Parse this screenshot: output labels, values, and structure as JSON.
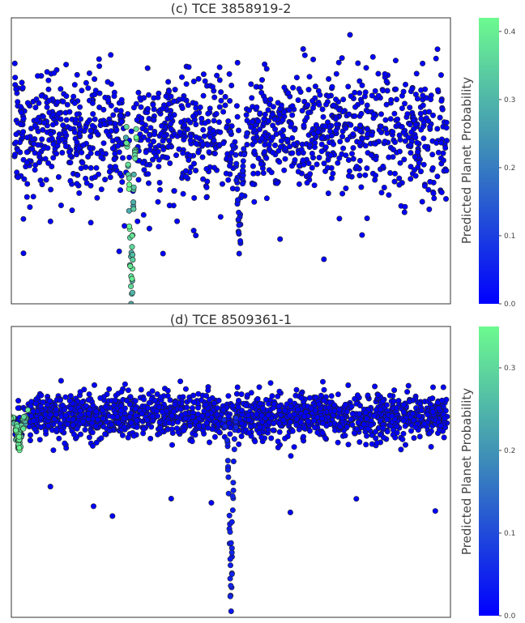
{
  "colors": {
    "low": "#0000ff",
    "mid": "#3f8fb7",
    "high": "#6dfa8f",
    "axes_edge": "#333333",
    "marker_edge": "#222222"
  },
  "chart_data": [
    {
      "type": "scatter",
      "title": "(c) TCE 3858919-2",
      "xlabel": "",
      "ylabel": "",
      "grid": false,
      "colorbar": {
        "label": "Predicted Planet Probability",
        "range": [
          0.0,
          0.42
        ],
        "ticks": [
          "0.0",
          "0.1",
          "0.2",
          "0.3",
          "0.4"
        ],
        "tick_values": [
          0.0,
          0.1,
          0.2,
          0.3,
          0.4
        ],
        "colormap": [
          "#0000ff",
          "#6dfa8f"
        ]
      },
      "points_description": {
        "n_background": 1400,
        "background_prob": 0.0,
        "dips": [
          {
            "phase": 0.27,
            "depth": 0.55,
            "width": 0.012,
            "prob": 0.42,
            "n": 50
          },
          {
            "phase": 0.52,
            "depth": 0.38,
            "width": 0.015,
            "prob": 0.03,
            "n": 40
          }
        ]
      }
    },
    {
      "type": "scatter",
      "title": "(d) TCE 8509361-1",
      "xlabel": "",
      "ylabel": "",
      "grid": false,
      "colorbar": {
        "label": "Predicted Planet Probability",
        "range": [
          0.0,
          0.35
        ],
        "ticks": [
          "0.0",
          "0.1",
          "0.2",
          "0.3"
        ],
        "tick_values": [
          0.0,
          0.1,
          0.2,
          0.3
        ],
        "colormap": [
          "#0000ff",
          "#6dfa8f"
        ]
      },
      "points_description": {
        "n_background": 1700,
        "background_prob": 0.0,
        "dips": [
          {
            "phase": 0.01,
            "depth": 0.12,
            "width": 0.02,
            "prob": 0.35,
            "n": 60
          },
          {
            "phase": 0.5,
            "depth": 0.75,
            "width": 0.012,
            "prob": 0.05,
            "n": 45
          }
        ]
      }
    }
  ]
}
